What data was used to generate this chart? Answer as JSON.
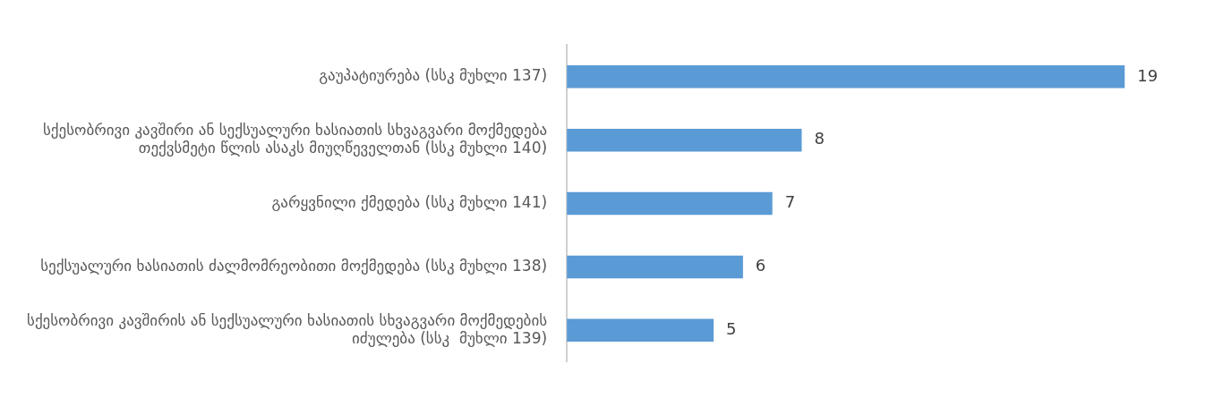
{
  "chart_data": {
    "type": "bar",
    "orientation": "horizontal",
    "categories": [
      "გაუპატიურება (სსკ მუხლი 137)",
      "სქესობრივი კავშირი ან სექსუალური ხასიათის სხვაგვარი მოქმედება თექვსმეტი წლის ასაკს მიუღწეველთან (სსკ მუხლი 140)",
      "გარყვნილი ქმედება (სსკ მუხლი 141)",
      "სექსუალური ხასიათის ძალმომრეობითი მოქმედება (სსკ მუხლი 138)",
      "სქესობრივი კავშირის ან სექსუალური ხასიათის სხვაგვარი მოქმედების იძულება (სსკ  მუხლი 139)"
    ],
    "values": [
      19,
      8,
      7,
      6,
      5
    ],
    "color": "#5b9bd5",
    "data_labels": true,
    "legend": false
  }
}
